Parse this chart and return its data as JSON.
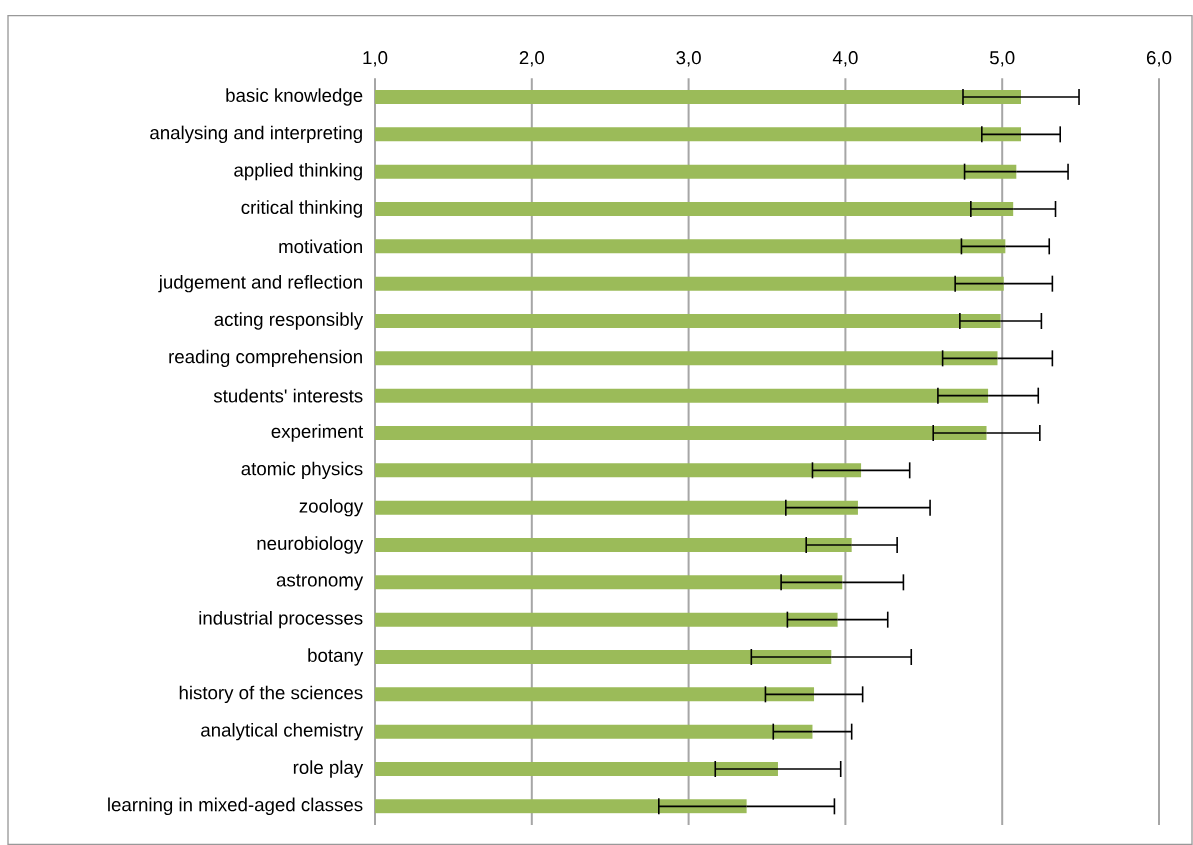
{
  "chart_data": {
    "type": "bar",
    "orientation": "horizontal",
    "categories": [
      "basic knowledge",
      "analysing and interpreting",
      "applied thinking",
      "critical thinking",
      "motivation",
      "judgement and reflection",
      "acting responsibly",
      "reading comprehension",
      "students' interests",
      "experiment",
      "atomic physics",
      "zoology",
      "neurobiology",
      "astronomy",
      "industrial processes",
      "botany",
      "history of the sciences",
      "analytical chemistry",
      "role play",
      "learning in mixed-aged classes"
    ],
    "values": [
      5.12,
      5.12,
      5.09,
      5.07,
      5.02,
      5.01,
      4.99,
      4.97,
      4.91,
      4.9,
      4.1,
      4.08,
      4.04,
      3.98,
      3.95,
      3.91,
      3.8,
      3.79,
      3.57,
      3.37
    ],
    "errors": [
      0.37,
      0.25,
      0.33,
      0.27,
      0.28,
      0.31,
      0.26,
      0.35,
      0.32,
      0.34,
      0.31,
      0.46,
      0.29,
      0.39,
      0.32,
      0.51,
      0.31,
      0.25,
      0.4,
      0.56
    ],
    "color": "#9bbb59",
    "xlim": [
      1,
      6
    ],
    "xticks": [
      {
        "value": 1,
        "label": "1,0"
      },
      {
        "value": 2,
        "label": "2,0"
      },
      {
        "value": 3,
        "label": "3,0"
      },
      {
        "value": 4,
        "label": "4,0"
      },
      {
        "value": 5,
        "label": "5,0"
      },
      {
        "value": 6,
        "label": "6,0"
      }
    ],
    "grid": "x"
  }
}
